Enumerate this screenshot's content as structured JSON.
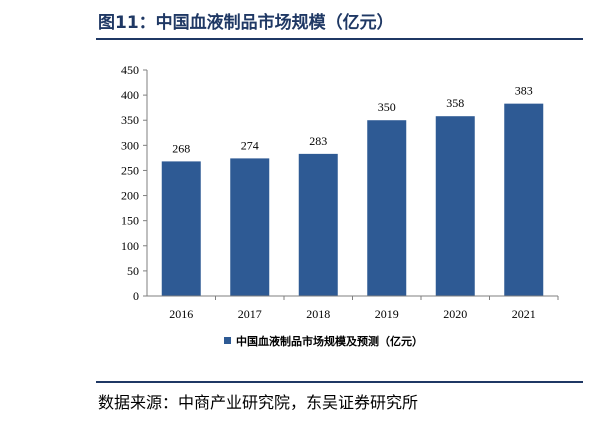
{
  "figure": {
    "title": "图11：中国血液制品市场规模（亿元）",
    "source": "数据来源：中商产业研究院，东吴证券研究所"
  },
  "colors": {
    "bar": "#2e5a94",
    "title": "#1f3864",
    "axis": "#7f7f7f"
  },
  "chart_data": {
    "type": "bar",
    "categories": [
      "2016",
      "2017",
      "2018",
      "2019",
      "2020",
      "2021"
    ],
    "series": [
      {
        "name": "中国血液制品市场规模及预测（亿元）",
        "values": [
          268,
          274,
          283,
          350,
          358,
          383
        ]
      }
    ],
    "ylim": [
      0,
      450
    ],
    "yticks": [
      "0",
      "50",
      "100",
      "150",
      "200",
      "250",
      "300",
      "350",
      "400",
      "450"
    ],
    "xlabel": "",
    "ylabel": "",
    "grid": false,
    "legend_position": "bottom"
  }
}
